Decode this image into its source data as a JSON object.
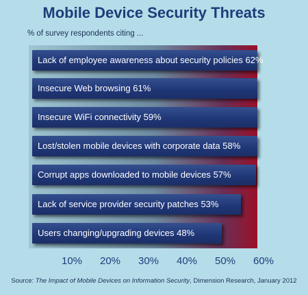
{
  "chart_data": {
    "type": "bar",
    "orientation": "horizontal",
    "title": "Mobile Device Security Threats",
    "subtitle": "% of survey respondents citing ...",
    "categories": [
      "Lack of employee awareness about security policies",
      "Insecure Web browsing",
      "Insecure WiFi connectivity",
      "Lost/stolen mobile devices with corporate data",
      "Corrupt apps downloaded to mobile devices",
      "Lack of service provider security patches",
      "Users changing/upgrading devices"
    ],
    "values": [
      62,
      61,
      59,
      58,
      57,
      53,
      48
    ],
    "value_labels": [
      "62%",
      "61%",
      "59%",
      "58%",
      "57%",
      "53%",
      "48%"
    ],
    "xlim": [
      0,
      60
    ],
    "ticks": [
      "10%",
      "20%",
      "30%",
      "40%",
      "50%",
      "60%"
    ],
    "grid": false,
    "legend": "none"
  },
  "source": {
    "prefix": "Source: ",
    "title": "The Impact of Mobile Devices on Information Security",
    "suffix": ", Dimension Research, January 2012"
  },
  "colors": {
    "background": "#b5dde9",
    "bar": "#1f3675",
    "title": "#1b3e7b",
    "gradient_end": "#9a1028"
  }
}
